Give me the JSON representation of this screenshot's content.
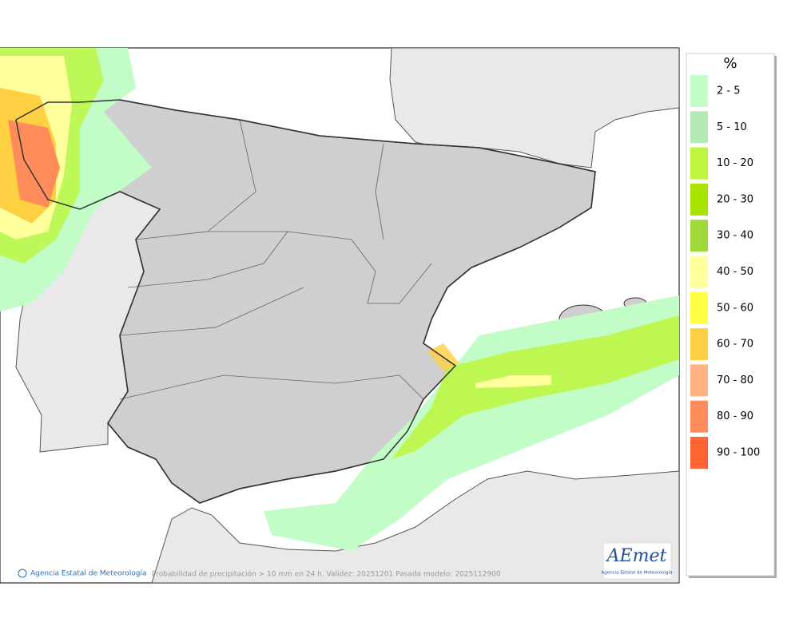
{
  "legend": {
    "title": "%",
    "items": [
      {
        "label": "2 - 5",
        "color": "#c2fdc8"
      },
      {
        "label": "5 - 10",
        "color": "#b5eab8"
      },
      {
        "label": "10 - 20",
        "color": "#bdf63c"
      },
      {
        "label": "20 - 30",
        "color": "#a8e400"
      },
      {
        "label": "30 - 40",
        "color": "#a0d83a"
      },
      {
        "label": "40 - 50",
        "color": "#ffff9c"
      },
      {
        "label": "50 - 60",
        "color": "#ffff46"
      },
      {
        "label": "60 - 70",
        "color": "#ffd042"
      },
      {
        "label": "70 - 80",
        "color": "#ffb282"
      },
      {
        "label": "80 - 90",
        "color": "#ff8c5a"
      },
      {
        "label": "90 - 100",
        "color": "#ff6432"
      }
    ]
  },
  "footer": {
    "credit": "Agencia Estatal de Meteorología",
    "caption": "Probabilidad de precipitación > 10 mm en 24 h. Validez: 20251201 Pasada modelo: 2025112900"
  },
  "logo": {
    "name": "AEmet",
    "subtitle": "Agencia Estatal de Meteorología"
  }
}
